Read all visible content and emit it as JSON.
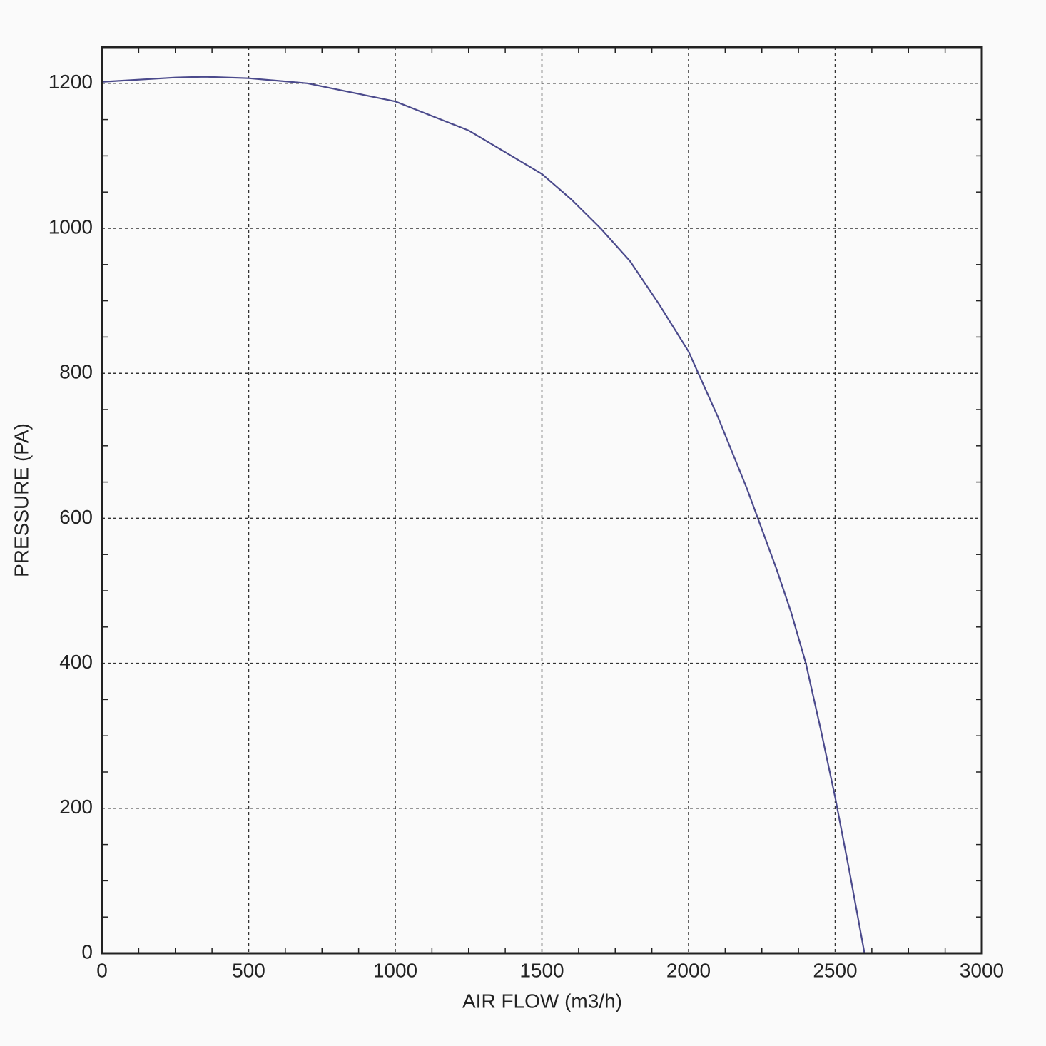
{
  "chart_data": {
    "type": "line",
    "x_label": "AIR FLOW (m3/h)",
    "y_label": "PRESSURE (PA)",
    "x": [
      0,
      250,
      350,
      500,
      700,
      1000,
      1250,
      1500,
      1600,
      1700,
      1800,
      1900,
      2000,
      2100,
      2200,
      2250,
      2300,
      2350,
      2400,
      2450,
      2500,
      2550,
      2600
    ],
    "series": [
      {
        "name": "PRESSURE",
        "color": "#4b4a8c",
        "values": [
          1202,
          1208,
          1209,
          1207,
          1200,
          1175,
          1135,
          1075,
          1040,
          1000,
          955,
          895,
          830,
          740,
          640,
          585,
          530,
          470,
          400,
          310,
          215,
          110,
          0
        ]
      }
    ],
    "xlim": [
      0,
      3000
    ],
    "xticks": [
      0,
      500,
      1000,
      1500,
      2000,
      2500,
      3000
    ],
    "ylim": [
      0,
      1250
    ],
    "yticks": [
      0,
      200,
      400,
      600,
      800,
      1000,
      1200
    ],
    "grid": true
  }
}
